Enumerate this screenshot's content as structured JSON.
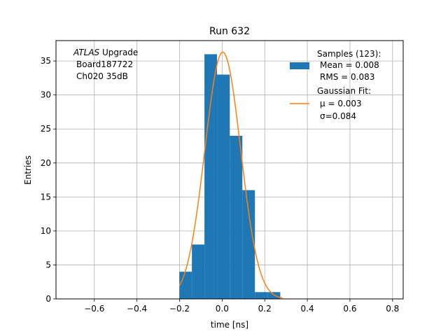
{
  "chart_data": {
    "type": "bar",
    "title": "Run 632",
    "xlabel": "time [ns]",
    "ylabel": "Entries",
    "xlim": [
      -0.78,
      0.85
    ],
    "ylim": [
      0,
      38
    ],
    "grid": true,
    "x_ticks": [
      -0.6,
      -0.4,
      -0.2,
      0.0,
      0.2,
      0.4,
      0.6,
      0.8
    ],
    "x_tick_labels": [
      "−0.6",
      "−0.4",
      "−0.2",
      "0.0",
      "0.2",
      "0.4",
      "0.6",
      "0.8"
    ],
    "y_ticks": [
      0,
      5,
      10,
      15,
      20,
      25,
      30,
      35
    ],
    "y_tick_labels": [
      "0",
      "5",
      "10",
      "15",
      "20",
      "25",
      "30",
      "35"
    ],
    "histogram": {
      "bin_edges": [
        -0.201,
        -0.142,
        -0.083,
        -0.024,
        0.036,
        0.095,
        0.154,
        0.213,
        0.273
      ],
      "counts": [
        4,
        8,
        36,
        33,
        24,
        16,
        1,
        1
      ],
      "color": "#1f77b4"
    },
    "gaussian_fit": {
      "amplitude": 36.3,
      "mu": 0.003,
      "sigma": 0.084,
      "x_range": [
        -0.201,
        0.283
      ],
      "color": "#ff7f0e"
    },
    "legend": {
      "position": "top-right",
      "entries": [
        {
          "lines": [
            "Samples (123):",
            "Mean = 0.008",
            "RMS = 0.083"
          ],
          "swatch": "bar"
        },
        {
          "lines": [
            "Gaussian Fit:",
            "μ = 0.003",
            "σ=0.084"
          ],
          "swatch": "line"
        }
      ]
    },
    "annotation": {
      "italic": "ATLAS",
      "line1_rest": " Upgrade",
      "line2": "Board187722",
      "line3": "Ch020 35dB"
    }
  }
}
